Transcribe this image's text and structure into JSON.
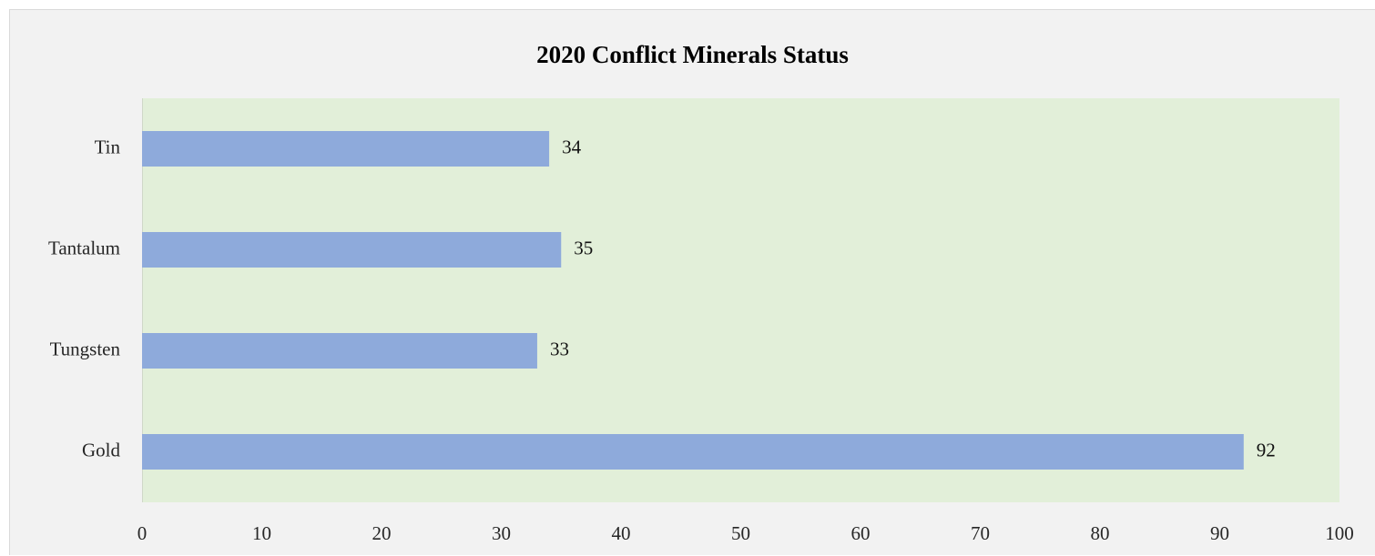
{
  "chart_data": {
    "type": "bar",
    "orientation": "horizontal",
    "title": "2020 Conflict  Minerals Status",
    "xlabel": "",
    "ylabel": "",
    "categories": [
      "Tin",
      "Tantalum",
      "Tungsten",
      "Gold"
    ],
    "values": [
      34,
      35,
      33,
      92
    ],
    "data_labels": [
      "34",
      "35",
      "33",
      "92"
    ],
    "xlim": [
      0,
      100
    ],
    "x_ticks": [
      0,
      10,
      20,
      30,
      40,
      50,
      60,
      70,
      80,
      90,
      100
    ],
    "grid": false,
    "legend": "none",
    "bar_color": "#8eaadb",
    "plot_area_color": "#e2efd9",
    "chart_area_color": "#f2f2f2"
  }
}
